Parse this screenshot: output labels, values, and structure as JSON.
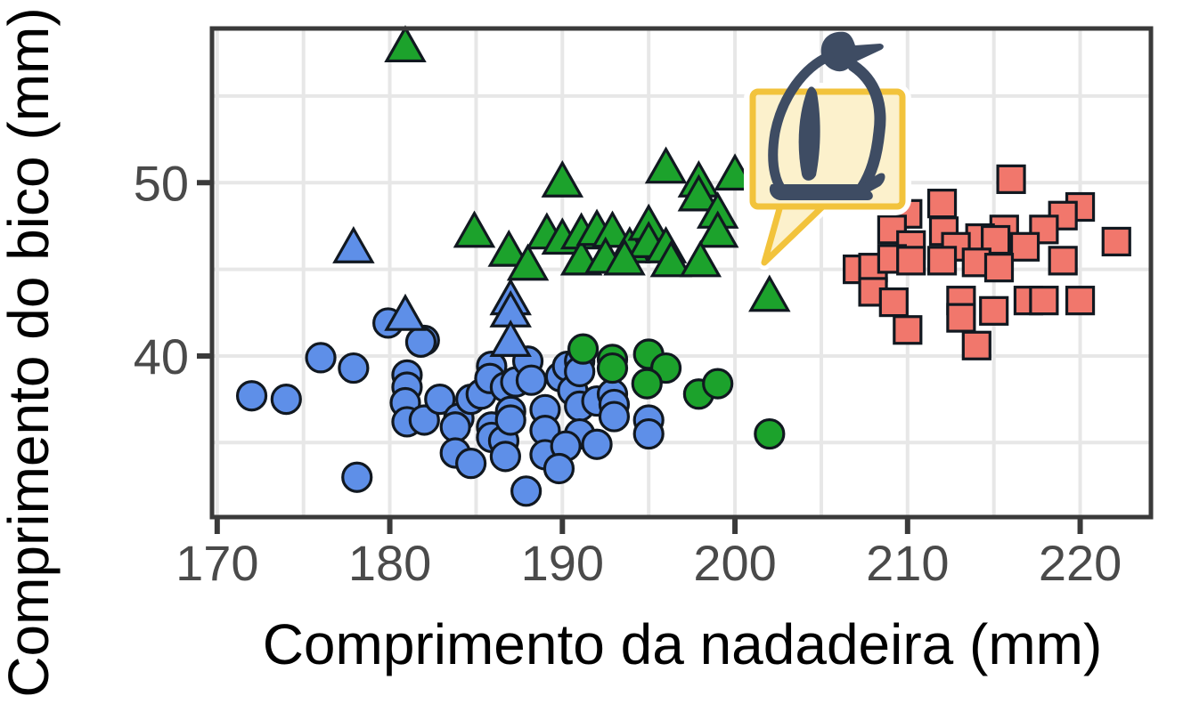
{
  "chart_data": {
    "type": "scatter",
    "title": "",
    "xlabel": "Comprimento da nadadeira (mm)",
    "ylabel": "Comprimento do bico (mm)",
    "xlim": [
      169.7,
      224.1
    ],
    "ylim": [
      30.7,
      58.9
    ],
    "xticks": [
      170,
      180,
      190,
      200,
      210,
      220
    ],
    "yticks": [
      40,
      50
    ],
    "grid": {
      "on": true,
      "step": 5,
      "color": "#e7e7e7"
    },
    "legend": "none",
    "marker_stroke": "#111820",
    "series": [
      {
        "name": "blue-circles",
        "marker": "circle",
        "fill": "#5e8fe8",
        "points": [
          [
            172.0,
            37.7
          ],
          [
            174.0,
            37.5
          ],
          [
            176.0,
            39.9
          ],
          [
            177.9,
            39.3
          ],
          [
            179.9,
            41.9
          ],
          [
            182.0,
            40.9
          ],
          [
            178.1,
            33.0
          ],
          [
            181.8,
            40.8
          ],
          [
            181.0,
            38.9
          ],
          [
            181.0,
            38.2
          ],
          [
            180.9,
            37.3
          ],
          [
            181.0,
            36.2
          ],
          [
            182.0,
            36.3
          ],
          [
            182.9,
            37.5
          ],
          [
            184.0,
            36.4
          ],
          [
            183.8,
            35.9
          ],
          [
            184.7,
            37.5
          ],
          [
            185.3,
            37.8
          ],
          [
            183.8,
            34.4
          ],
          [
            184.7,
            33.8
          ],
          [
            185.9,
            35.9
          ],
          [
            185.9,
            35.3
          ],
          [
            186.6,
            35.1
          ],
          [
            186.7,
            34.2
          ],
          [
            185.9,
            39.4
          ],
          [
            185.8,
            38.7
          ],
          [
            186.7,
            38.2
          ],
          [
            187.3,
            38.5
          ],
          [
            187.0,
            36.8
          ],
          [
            187.0,
            36.3
          ],
          [
            188.0,
            39.7
          ],
          [
            188.2,
            38.6
          ],
          [
            187.9,
            32.2
          ],
          [
            189.0,
            36.9
          ],
          [
            189.0,
            35.7
          ],
          [
            189.0,
            34.3
          ],
          [
            189.9,
            38.8
          ],
          [
            190.3,
            39.4
          ],
          [
            190.6,
            38.0
          ],
          [
            191.0,
            37.1
          ],
          [
            191.0,
            35.5
          ],
          [
            190.2,
            34.8
          ],
          [
            189.8,
            33.5
          ],
          [
            191.0,
            39.7
          ],
          [
            191.0,
            39.1
          ],
          [
            192.0,
            37.4
          ],
          [
            192.9,
            37.8
          ],
          [
            193.0,
            37.2
          ],
          [
            193.0,
            36.5
          ],
          [
            192.0,
            34.9
          ],
          [
            195.0,
            36.3
          ],
          [
            195.0,
            35.5
          ]
        ]
      },
      {
        "name": "blue-triangles",
        "marker": "triangle",
        "fill": "#5e8fe8",
        "points": [
          [
            177.9,
            46.2
          ],
          [
            180.9,
            42.3
          ],
          [
            187.0,
            43.2
          ],
          [
            187.0,
            42.5
          ],
          [
            187.0,
            40.8
          ]
        ]
      },
      {
        "name": "green-triangles",
        "marker": "triangle",
        "fill": "#1ca22c",
        "points": [
          [
            180.9,
            57.8
          ],
          [
            190.0,
            50.0
          ],
          [
            196.0,
            50.8
          ],
          [
            197.9,
            50.0
          ],
          [
            197.9,
            49.2
          ],
          [
            200.0,
            50.4
          ],
          [
            199.0,
            48.2
          ],
          [
            199.0,
            47.1
          ],
          [
            184.9,
            47.1
          ],
          [
            186.9,
            46.0
          ],
          [
            188.0,
            45.2
          ],
          [
            189.1,
            47.0
          ],
          [
            190.0,
            46.7
          ],
          [
            191.1,
            47.0
          ],
          [
            191.1,
            45.5
          ],
          [
            192.0,
            47.2
          ],
          [
            192.9,
            47.1
          ],
          [
            193.9,
            46.2
          ],
          [
            195.0,
            47.5
          ],
          [
            195.0,
            46.5
          ],
          [
            196.0,
            46.2
          ],
          [
            196.3,
            45.4
          ],
          [
            198.0,
            45.4
          ],
          [
            192.5,
            45.6
          ],
          [
            193.6,
            45.5
          ],
          [
            202.0,
            43.4
          ]
        ]
      },
      {
        "name": "green-circles",
        "marker": "circle",
        "fill": "#1ca22c",
        "points": [
          [
            191.2,
            40.4
          ],
          [
            192.9,
            39.8
          ],
          [
            192.9,
            39.3
          ],
          [
            195.0,
            40.1
          ],
          [
            196.0,
            39.3
          ],
          [
            194.9,
            38.4
          ],
          [
            197.9,
            37.8
          ],
          [
            199.0,
            38.4
          ],
          [
            202.0,
            35.5
          ]
        ]
      },
      {
        "name": "red-squares",
        "marker": "square",
        "fill": "#f1776c",
        "points": [
          [
            216.0,
            50.2
          ],
          [
            212.0,
            48.8
          ],
          [
            220.0,
            48.6
          ],
          [
            219.0,
            48.1
          ],
          [
            210.0,
            48.2
          ],
          [
            209.1,
            47.3
          ],
          [
            212.1,
            47.2
          ],
          [
            215.6,
            47.3
          ],
          [
            217.9,
            47.3
          ],
          [
            214.2,
            46.8
          ],
          [
            215.1,
            46.7
          ],
          [
            210.2,
            46.4
          ],
          [
            212.8,
            46.3
          ],
          [
            216.8,
            46.3
          ],
          [
            222.1,
            46.6
          ],
          [
            207.1,
            45.0
          ],
          [
            208.0,
            45.1
          ],
          [
            209.1,
            45.6
          ],
          [
            210.2,
            45.5
          ],
          [
            212.0,
            45.5
          ],
          [
            214.0,
            45.4
          ],
          [
            215.3,
            45.1
          ],
          [
            219.0,
            45.5
          ],
          [
            208.0,
            43.7
          ],
          [
            209.2,
            43.1
          ],
          [
            213.1,
            43.2
          ],
          [
            215.0,
            42.6
          ],
          [
            217.0,
            43.2
          ],
          [
            217.9,
            43.2
          ],
          [
            220.0,
            43.2
          ],
          [
            210.0,
            41.5
          ],
          [
            213.1,
            42.2
          ],
          [
            214.0,
            40.6
          ]
        ]
      }
    ],
    "axis": {
      "border_color": "#3a3a3a",
      "tick_color": "#3a3a3a",
      "tick_label_color": "#4a4a4a"
    }
  },
  "sticker": {
    "name": "penguin-speech-bubble",
    "bubble_fill": "#fcf1cc",
    "bubble_stroke": "#f2c33c",
    "penguin_color": "#3e4c63",
    "halo": "#ffffff"
  }
}
